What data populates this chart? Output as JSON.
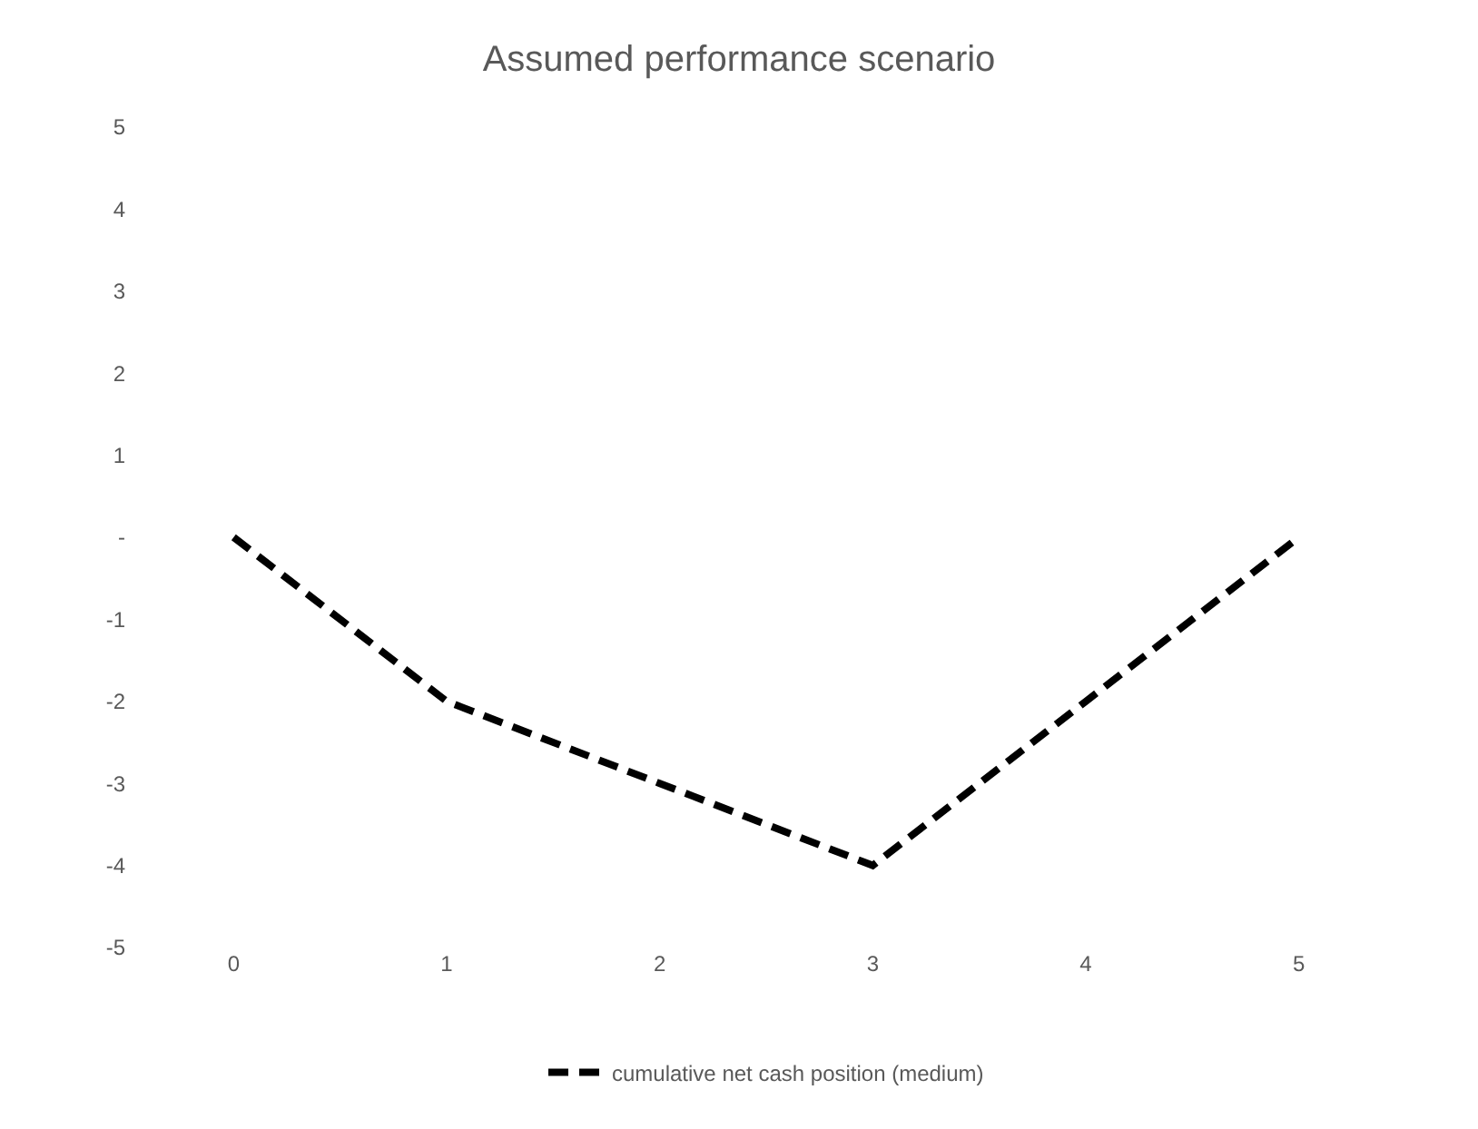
{
  "chart_data": {
    "type": "line",
    "title": "Assumed performance scenario",
    "categories": [
      "0",
      "1",
      "2",
      "3",
      "4",
      "5"
    ],
    "series": [
      {
        "name": "cumulative net cash position (medium)",
        "color": "#000000",
        "values": [
          0,
          -2,
          -3,
          -4,
          -2,
          0
        ]
      }
    ],
    "ylim": [
      -5,
      5
    ],
    "yticks": [
      5,
      4,
      3,
      2,
      1,
      {
        "value": 0,
        "label": "-"
      },
      -1,
      -2,
      -3,
      -4,
      -5
    ],
    "grid": false,
    "legend": "bottom",
    "line_style": "dashed",
    "marker": "none"
  }
}
